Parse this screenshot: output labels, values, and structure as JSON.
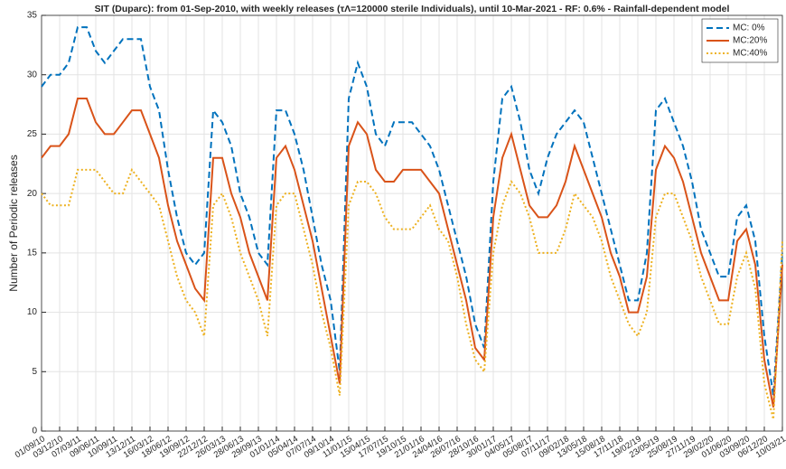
{
  "chart_data": {
    "type": "line",
    "title": "SIT (Duparc): from 01-Sep-2010, with weekly releases (τΛ=120000 sterile Individuals), until 10-Mar-2021 - RF: 0.6% - Rainfall-dependent model",
    "y_label": "Number of Periodic releases",
    "categories": [
      "01/09/10",
      null,
      "03/12/10",
      null,
      "07/03/11",
      null,
      "09/06/11",
      null,
      "10/09/11",
      null,
      "13/12/11",
      null,
      "16/03/12",
      null,
      "18/06/12",
      null,
      "19/09/12",
      null,
      "22/12/12",
      null,
      "26/03/13",
      null,
      "28/06/13",
      null,
      "29/09/13",
      null,
      "01/01/14",
      null,
      "05/04/14",
      null,
      "07/07/14",
      null,
      "09/10/14",
      null,
      "11/01/15",
      null,
      "15/04/15",
      null,
      "17/07/15",
      null,
      "19/10/15",
      null,
      "21/01/16",
      null,
      "24/04/16",
      null,
      "26/07/16",
      null,
      "28/10/16",
      null,
      "30/01/17",
      null,
      "04/05/17",
      null,
      "05/08/17",
      null,
      "07/11/17",
      null,
      "09/02/18",
      null,
      "13/05/18",
      null,
      "15/08/18",
      null,
      "17/11/18",
      null,
      "19/02/19",
      null,
      "23/05/19",
      null,
      "25/08/19",
      null,
      "27/11/19",
      null,
      "29/02/20",
      null,
      "01/06/20",
      null,
      "03/09/20",
      null,
      "06/12/20",
      null,
      "10/03/21"
    ],
    "series": [
      {
        "name": "MC: 0%",
        "color": "#0072bd",
        "linestyle": "dashed",
        "values": [
          29,
          30,
          30,
          31,
          34,
          34,
          32,
          31,
          32,
          33,
          33,
          33,
          29,
          27,
          22,
          18,
          15,
          14,
          15,
          27,
          26,
          24,
          20,
          18,
          15,
          14,
          27,
          27,
          25,
          22,
          18,
          14,
          11,
          5,
          28,
          31,
          29,
          25,
          24,
          26,
          26,
          26,
          25,
          24,
          22,
          19,
          16,
          13,
          9,
          7,
          21,
          28,
          29,
          26,
          22,
          20,
          23,
          25,
          26,
          27,
          26,
          23,
          20,
          17,
          14,
          11,
          11,
          15,
          27,
          28,
          26,
          24,
          21,
          17,
          15,
          13,
          13,
          18,
          19,
          16,
          8,
          3,
          15
        ]
      },
      {
        "name": "MC:20%",
        "color": "#d95319",
        "linestyle": "solid",
        "values": [
          23,
          24,
          24,
          25,
          28,
          28,
          26,
          25,
          25,
          26,
          27,
          27,
          25,
          23,
          19,
          16,
          14,
          12,
          11,
          23,
          23,
          20,
          18,
          15,
          13,
          11,
          23,
          24,
          22,
          19,
          16,
          12,
          8,
          4,
          24,
          26,
          25,
          22,
          21,
          21,
          22,
          22,
          22,
          21,
          20,
          17,
          14,
          11,
          7,
          6,
          18,
          23,
          25,
          22,
          19,
          18,
          18,
          19,
          21,
          24,
          22,
          20,
          18,
          15,
          13,
          10,
          10,
          13,
          22,
          24,
          23,
          21,
          18,
          15,
          13,
          11,
          11,
          16,
          17,
          14,
          6,
          2,
          14
        ]
      },
      {
        "name": "MC:40%",
        "color": "#edb120",
        "linestyle": "dotted",
        "values": [
          20,
          19,
          19,
          19,
          22,
          22,
          22,
          21,
          20,
          20,
          22,
          21,
          20,
          19,
          16,
          13,
          11,
          10,
          8,
          19,
          20,
          18,
          15,
          13,
          11,
          8,
          19,
          20,
          20,
          17,
          14,
          10,
          7,
          3,
          19,
          21,
          21,
          20,
          18,
          17,
          17,
          17,
          18,
          19,
          17,
          16,
          13,
          9,
          6,
          5,
          15,
          19,
          21,
          20,
          18,
          15,
          15,
          15,
          17,
          20,
          19,
          18,
          16,
          13,
          11,
          9,
          8,
          10,
          18,
          20,
          20,
          18,
          16,
          13,
          11,
          9,
          9,
          13,
          15,
          12,
          4,
          1,
          16
        ]
      }
    ],
    "ylim": [
      0,
      35
    ],
    "yticks": [
      0,
      5,
      10,
      15,
      20,
      25,
      30,
      35
    ],
    "grid": true,
    "legend": "northeast"
  }
}
